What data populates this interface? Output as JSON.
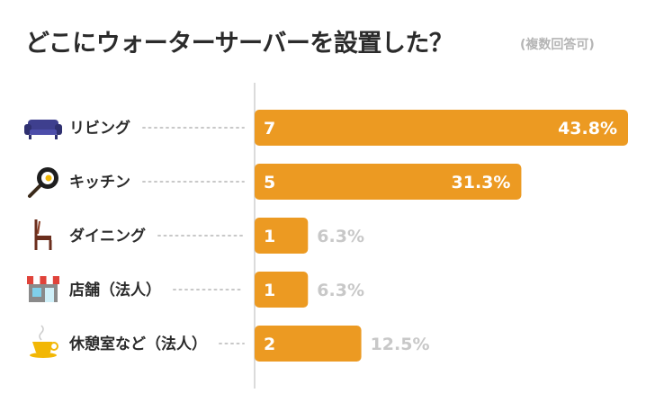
{
  "chart_data": {
    "type": "bar",
    "orientation": "horizontal",
    "title": "どこにウォーターサーバーを設置した？",
    "subtitle": "(複数回答可)",
    "categories": [
      "リビング",
      "キッチン",
      "ダイニング",
      "店舗（法人）",
      "休憩室など（法人）"
    ],
    "icons": [
      "sofa-icon",
      "frying-pan-icon",
      "chair-icon",
      "shop-icon",
      "tea-cup-icon"
    ],
    "counts": [
      7,
      5,
      1,
      1,
      2
    ],
    "percent_labels": [
      "43.8%",
      "31.3%",
      "6.3%",
      "6.3%",
      "12.5%"
    ],
    "xlim": [
      0,
      7
    ],
    "grid": false,
    "colors": {
      "bar": "#ec9a22",
      "percent_outside": "#c8c8c8",
      "axis": "#cfcfcf",
      "dots": "#c8c8c8"
    }
  }
}
